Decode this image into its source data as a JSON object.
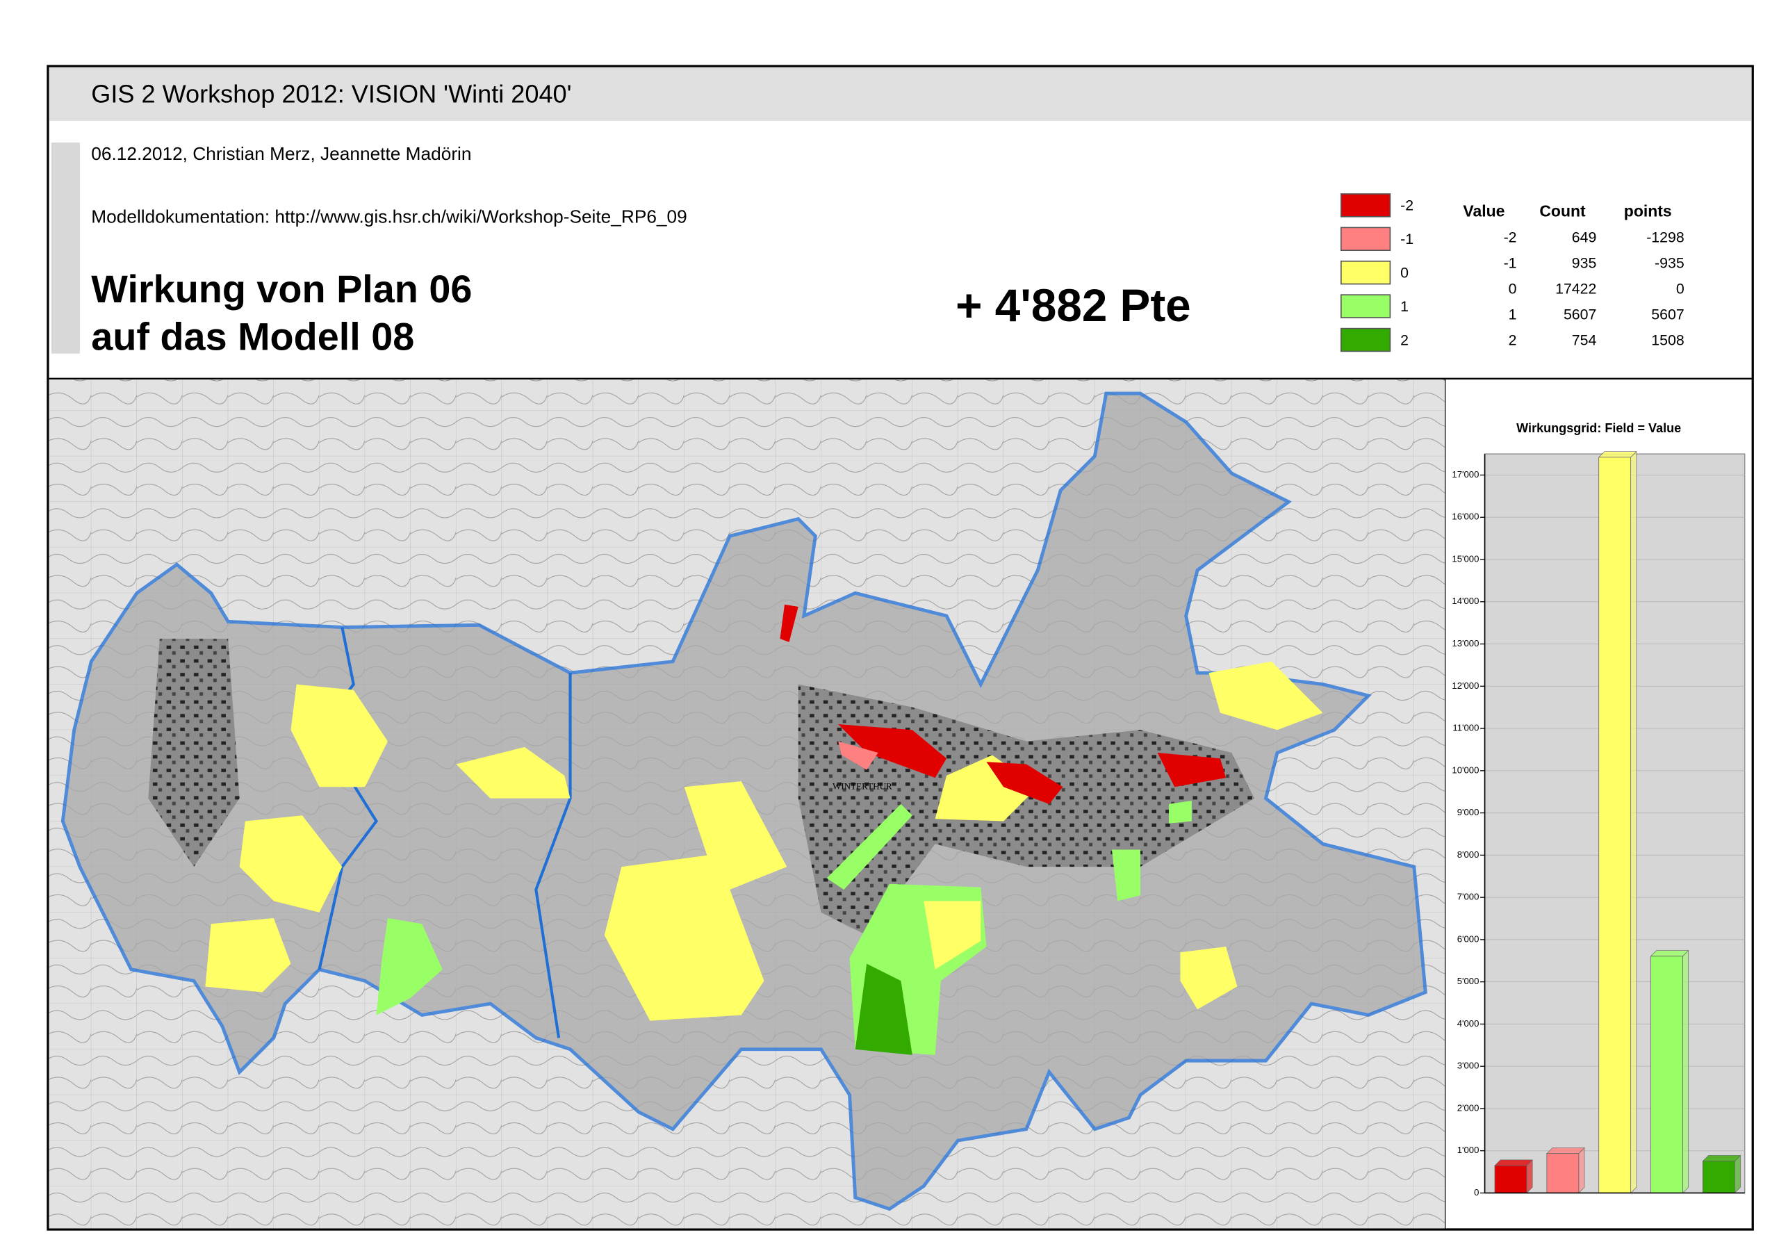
{
  "header": {
    "title": "GIS 2 Workshop 2012: VISION 'Winti 2040'",
    "authors": "06.12.2012, Christian Merz, Jeannette Madörin",
    "documentation": "Modelldokumentation: http://www.gis.hsr.ch/wiki/Workshop-Seite_RP6_09",
    "heading": [
      "Wirkung von Plan 06",
      "auf das Modell 08"
    ],
    "total": "+ 4'882 Pte"
  },
  "legend_table": {
    "headers": [
      "Value",
      "Count",
      "points"
    ],
    "rows": [
      [
        -2,
        649,
        -1298
      ],
      [
        -1,
        935,
        -935
      ],
      [
        0,
        17422,
        0
      ],
      [
        1,
        5607,
        5607
      ],
      [
        2,
        754,
        1508
      ]
    ],
    "colors": [
      "#e00000",
      "#ff8080",
      "#ffff66",
      "#99ff66",
      "#33aa00"
    ]
  },
  "map": {
    "labels": [
      "WINTERTHUR"
    ]
  },
  "chart_data": {
    "type": "bar",
    "title": "Wirkungsgrid: Field = Value",
    "categories": [
      null,
      null,
      null,
      null,
      null
    ],
    "values": [
      649,
      935,
      17422,
      5607,
      754
    ],
    "colors": [
      "#e00000",
      "#ff8080",
      "#ffff66",
      "#99ff66",
      "#33aa00"
    ],
    "ylim": [
      0,
      17500
    ],
    "yticks": [
      0,
      {
        "value": 1000,
        "label": "1'000"
      },
      {
        "value": 2000,
        "label": "2'000"
      },
      {
        "value": 3000,
        "label": "3'000"
      },
      {
        "value": 4000,
        "label": "4'000"
      },
      {
        "value": 5000,
        "label": "5'000"
      },
      {
        "value": 6000,
        "label": "6'000"
      },
      {
        "value": 7000,
        "label": "7'000"
      },
      {
        "value": 8000,
        "label": "8'000"
      },
      {
        "value": 9000,
        "label": "9'000"
      },
      {
        "value": 10000,
        "label": "10'000"
      },
      {
        "value": 11000,
        "label": "11'000"
      },
      {
        "value": 12000,
        "label": "12'000"
      },
      {
        "value": 13000,
        "label": "13'000"
      },
      {
        "value": 14000,
        "label": "14'000"
      },
      {
        "value": 15000,
        "label": "15'000"
      },
      {
        "value": 16000,
        "label": "16'000"
      },
      {
        "value": 17000,
        "label": "17'000"
      }
    ],
    "grid": true
  }
}
